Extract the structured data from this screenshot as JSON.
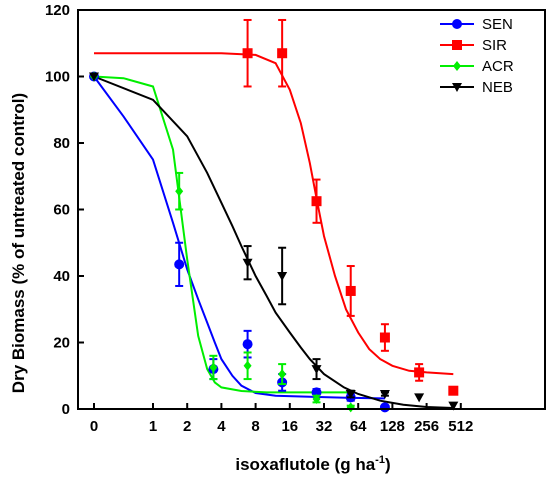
{
  "chart_data": {
    "type": "scatter",
    "xlabel_main": "isoxaflutole (g ha",
    "xlabel_sup": "-1",
    "xlabel_end": ")",
    "ylabel": "Dry Biomass (% of untreated control)",
    "xscale": "log2 (0 plotted at origin)",
    "xticks": [
      "0",
      "1",
      "2",
      "4",
      "8",
      "16",
      "32",
      "64",
      "128",
      "256",
      "512"
    ],
    "yticks": [
      "0",
      "20",
      "40",
      "60",
      "80",
      "100",
      "120"
    ],
    "ylim": [
      0,
      120
    ],
    "legend_position": "top-right",
    "series": [
      {
        "name": "SEN",
        "color": "#0000ff",
        "marker": "circle",
        "points": [
          {
            "x": 0,
            "y": 100,
            "err": 0
          },
          {
            "x": 1.7,
            "y": 43.5,
            "err": 6.5
          },
          {
            "x": 3.4,
            "y": 12,
            "err": 3
          },
          {
            "x": 6.8,
            "y": 19.5,
            "err": 4
          },
          {
            "x": 13.7,
            "y": 8,
            "err": 2.5
          },
          {
            "x": 27.5,
            "y": 5,
            "err": 1
          },
          {
            "x": 55,
            "y": 3.5,
            "err": 1
          },
          {
            "x": 110,
            "y": 0.5,
            "err": 0.5
          }
        ],
        "fit": [
          [
            0,
            100
          ],
          [
            0.5,
            88
          ],
          [
            1,
            75
          ],
          [
            1.5,
            56
          ],
          [
            2,
            42
          ],
          [
            2.5,
            33
          ],
          [
            3,
            26
          ],
          [
            3.5,
            20
          ],
          [
            4,
            15
          ],
          [
            5,
            10
          ],
          [
            6,
            7
          ],
          [
            8,
            4.8
          ],
          [
            12,
            4
          ],
          [
            24,
            3.7
          ],
          [
            50,
            3.4
          ],
          [
            110,
            3.2
          ]
        ]
      },
      {
        "name": "SIR",
        "color": "#ff0000",
        "marker": "square",
        "points": [
          {
            "x": 6.8,
            "y": 107,
            "err": 10
          },
          {
            "x": 13.7,
            "y": 107,
            "err": 10
          },
          {
            "x": 27.5,
            "y": 62.5,
            "err": 6.5
          },
          {
            "x": 55,
            "y": 35.5,
            "err": 7.5
          },
          {
            "x": 110,
            "y": 21.5,
            "err": 4
          },
          {
            "x": 220,
            "y": 11,
            "err": 2.5
          },
          {
            "x": 440,
            "y": 5.5,
            "err": 0
          }
        ],
        "fit": [
          [
            0,
            107
          ],
          [
            2,
            107
          ],
          [
            4,
            107
          ],
          [
            8,
            106.5
          ],
          [
            12,
            104
          ],
          [
            16,
            96
          ],
          [
            20,
            86
          ],
          [
            24,
            74
          ],
          [
            28,
            62
          ],
          [
            32,
            52
          ],
          [
            40,
            40
          ],
          [
            50,
            30
          ],
          [
            64,
            23
          ],
          [
            80,
            18
          ],
          [
            100,
            15
          ],
          [
            128,
            13
          ],
          [
            180,
            11.5
          ],
          [
            256,
            11
          ],
          [
            440,
            10.5
          ]
        ]
      },
      {
        "name": "ACR",
        "color": "#00ee00",
        "marker": "diamond",
        "points": [
          {
            "x": 0,
            "y": 100,
            "err": 0
          },
          {
            "x": 1.7,
            "y": 65.5,
            "err": 5.5
          },
          {
            "x": 3.4,
            "y": 12.5,
            "err": 3.5
          },
          {
            "x": 6.8,
            "y": 13,
            "err": 4
          },
          {
            "x": 13.7,
            "y": 10.5,
            "err": 3
          },
          {
            "x": 27.5,
            "y": 3,
            "err": 1
          },
          {
            "x": 55,
            "y": 0.5,
            "err": 0.5
          }
        ],
        "fit": [
          [
            0,
            100
          ],
          [
            0.5,
            99.5
          ],
          [
            1,
            97
          ],
          [
            1.5,
            78
          ],
          [
            2,
            45
          ],
          [
            2.5,
            22
          ],
          [
            3,
            12
          ],
          [
            3.5,
            8
          ],
          [
            4,
            6.5
          ],
          [
            6,
            5.4
          ],
          [
            10,
            5
          ],
          [
            20,
            5
          ],
          [
            55,
            5
          ]
        ]
      },
      {
        "name": "NEB",
        "color": "#000000",
        "marker": "triangle-down",
        "points": [
          {
            "x": 0,
            "y": 100,
            "err": 0
          },
          {
            "x": 6.8,
            "y": 44,
            "err": 5
          },
          {
            "x": 13.7,
            "y": 40,
            "err": 8.5
          },
          {
            "x": 27.5,
            "y": 12,
            "err": 3
          },
          {
            "x": 55,
            "y": 4.5,
            "err": 1
          },
          {
            "x": 110,
            "y": 4.5,
            "err": 0.5
          },
          {
            "x": 220,
            "y": 3.5,
            "err": 0
          },
          {
            "x": 440,
            "y": 1,
            "err": 0
          }
        ],
        "fit": [
          [
            0,
            100
          ],
          [
            1,
            93
          ],
          [
            2,
            82
          ],
          [
            3,
            71
          ],
          [
            4,
            62
          ],
          [
            5,
            55
          ],
          [
            6,
            49
          ],
          [
            8,
            40
          ],
          [
            10,
            34
          ],
          [
            12,
            29
          ],
          [
            16,
            23
          ],
          [
            20,
            18.5
          ],
          [
            24,
            15
          ],
          [
            32,
            10.5
          ],
          [
            48,
            6.5
          ],
          [
            64,
            4.5
          ],
          [
            100,
            2.5
          ],
          [
            160,
            1.3
          ],
          [
            256,
            0.6
          ],
          [
            440,
            0.3
          ]
        ]
      }
    ]
  }
}
